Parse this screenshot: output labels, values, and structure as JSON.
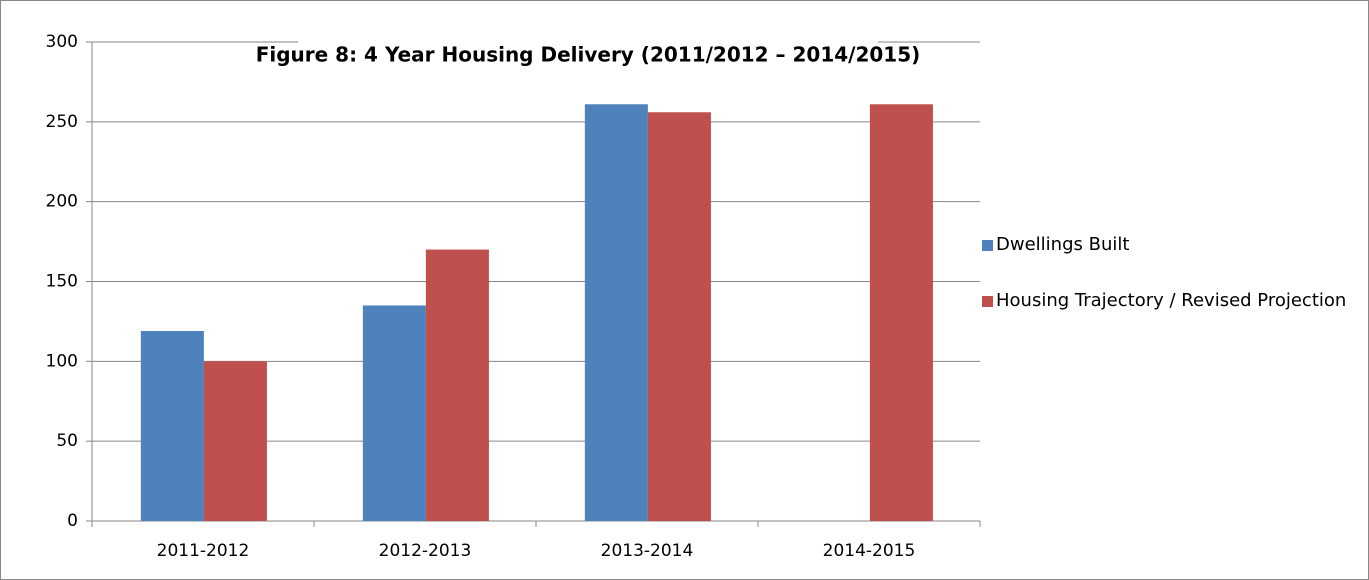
{
  "chart_data": {
    "type": "bar",
    "title": "Figure 8: 4 Year Housing Delivery (2011/2012 – 2014/2015)",
    "categories": [
      "2011-2012",
      "2012-2013",
      "2013-2014",
      "2014-2015"
    ],
    "series": [
      {
        "name": "Dwellings Built",
        "color": "#4f81bd",
        "values": [
          119,
          135,
          261,
          null
        ]
      },
      {
        "name": "Housing Trajectory / Revised Projection",
        "color": "#c0504d",
        "values": [
          100,
          170,
          256,
          261
        ]
      }
    ],
    "ylim": [
      0,
      300
    ],
    "yticks": [
      0,
      50,
      100,
      150,
      200,
      250,
      300
    ],
    "grid": true,
    "legend": "right"
  }
}
